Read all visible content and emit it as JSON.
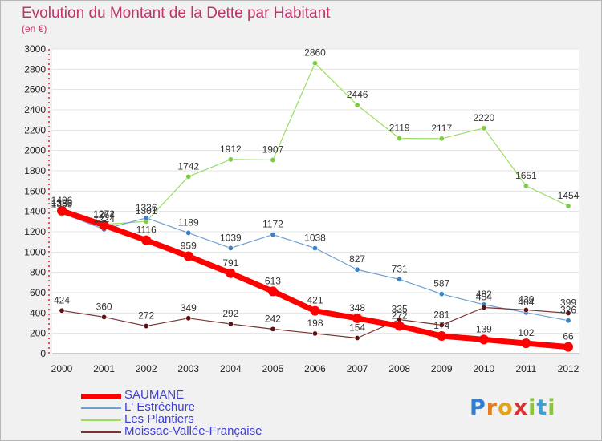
{
  "page": {
    "title": "Evolution du Montant de la Dette par Habitant",
    "subtitle": "(en €)",
    "logo": "Proxiti",
    "colors": {
      "title": "#c3336b",
      "legend_text": "#3f3fd6",
      "background": "#f1f1f1",
      "plot_bg": "#ffffff",
      "grid": "#cccccc"
    }
  },
  "chart_data": {
    "type": "line",
    "title": "Evolution du Montant de la Dette par Habitant",
    "subtitle": "(en €)",
    "xlabel": "",
    "ylabel": "",
    "x": [
      "2000",
      "2001",
      "2002",
      "2003",
      "2004",
      "2005",
      "2006",
      "2007",
      "2008",
      "2009",
      "2010",
      "2011",
      "2012"
    ],
    "ylim": [
      0,
      3000
    ],
    "yticks": [
      0,
      200,
      400,
      600,
      800,
      1000,
      1200,
      1400,
      1600,
      1800,
      2000,
      2200,
      2400,
      2600,
      2800,
      3000
    ],
    "grid": false,
    "legend_position": "bottom-left",
    "series": [
      {
        "name": "SAUMANE",
        "color": "#ff0000",
        "marker_color": "#ff0000",
        "width": 7,
        "values": [
          1406,
          1264,
          1116,
          959,
          791,
          613,
          421,
          348,
          272,
          174,
          139,
          102,
          66
        ]
      },
      {
        "name": "L' Estréchure",
        "color": "#6f9fd0",
        "marker_color": "#3d82c7",
        "width": 1.2,
        "values": [
          1383,
          1224,
          1336,
          1189,
          1039,
          1172,
          1038,
          827,
          731,
          587,
          482,
          404,
          326
        ]
      },
      {
        "name": "Les Plantiers",
        "color": "#99dd66",
        "marker_color": "#7bcc44",
        "width": 1.2,
        "values": [
          1369,
          1272,
          1301,
          1742,
          1912,
          1907,
          2860,
          2446,
          2119,
          2117,
          2220,
          1651,
          1454
        ]
      },
      {
        "name": "Moissac-Vallée-Française",
        "color": "#7a3333",
        "marker_color": "#601010",
        "width": 1.2,
        "values": [
          424,
          360,
          272,
          349,
          292,
          242,
          198,
          154,
          335,
          281,
          454,
          430,
          399
        ]
      }
    ]
  }
}
